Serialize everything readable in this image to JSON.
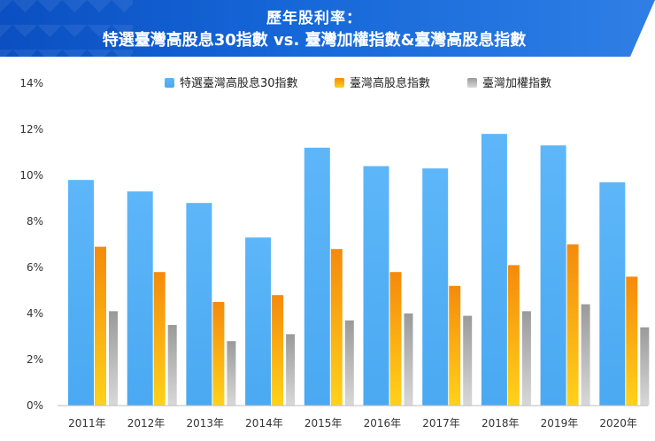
{
  "header": {
    "line1": "歷年股利率：",
    "line2": "特選臺灣高股息30指數 vs. 臺灣加權指數&臺灣高股息指數"
  },
  "chart_data": {
    "type": "bar",
    "title": "歷年股利率：特選臺灣高股息30指數 vs. 臺灣加權指數&臺灣高股息指數",
    "xlabel": "",
    "ylabel": "",
    "ylim": [
      0,
      14
    ],
    "yticks": [
      "0%",
      "2%",
      "4%",
      "6%",
      "8%",
      "10%",
      "12%",
      "14%"
    ],
    "categories": [
      "2011年",
      "2012年",
      "2013年",
      "2014年",
      "2015年",
      "2016年",
      "2017年",
      "2018年",
      "2019年",
      "2020年"
    ],
    "series": [
      {
        "name": "特選臺灣高股息30指數",
        "color": "#5ab4f7",
        "values": [
          9.8,
          9.3,
          8.8,
          7.3,
          11.2,
          10.4,
          10.3,
          11.8,
          11.3,
          9.7
        ]
      },
      {
        "name": "臺灣高股息指數",
        "color": "#f79a12",
        "values": [
          6.9,
          5.8,
          4.5,
          4.8,
          6.8,
          5.8,
          5.2,
          6.1,
          7.0,
          5.6
        ]
      },
      {
        "name": "臺灣加權指數",
        "color": "#8c8c8c",
        "values": [
          4.1,
          3.5,
          2.8,
          3.1,
          3.7,
          4.0,
          3.9,
          4.1,
          4.4,
          3.4
        ]
      }
    ],
    "legend_position": "top",
    "grid": false
  }
}
